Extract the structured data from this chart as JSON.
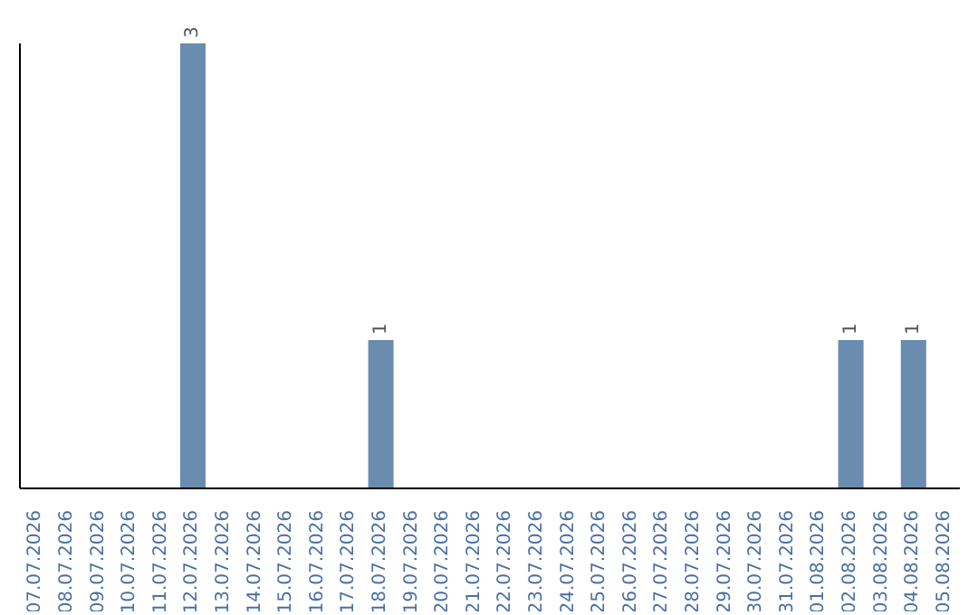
{
  "chart_data": {
    "type": "bar",
    "categories": [
      "07.07.2026",
      "08.07.2026",
      "09.07.2026",
      "10.07.2026",
      "11.07.2026",
      "12.07.2026",
      "13.07.2026",
      "14.07.2026",
      "15.07.2026",
      "16.07.2026",
      "17.07.2026",
      "18.07.2026",
      "19.07.2026",
      "20.07.2026",
      "21.07.2026",
      "22.07.2026",
      "23.07.2026",
      "24.07.2026",
      "25.07.2026",
      "26.07.2026",
      "27.07.2026",
      "28.07.2026",
      "29.07.2026",
      "30.07.2026",
      "31.07.2026",
      "01.08.2026",
      "02.08.2026",
      "03.08.2026",
      "04.08.2026",
      "05.08.2026"
    ],
    "values": [
      null,
      null,
      null,
      null,
      null,
      3,
      null,
      null,
      null,
      null,
      null,
      1,
      null,
      null,
      null,
      null,
      null,
      null,
      null,
      null,
      null,
      null,
      null,
      null,
      null,
      null,
      1,
      null,
      1,
      null
    ],
    "value_labels": [
      null,
      null,
      null,
      null,
      null,
      "3",
      null,
      null,
      null,
      null,
      null,
      "1",
      null,
      null,
      null,
      null,
      null,
      null,
      null,
      null,
      null,
      null,
      null,
      null,
      null,
      null,
      "1",
      null,
      "1",
      null
    ],
    "color": "#6a8caf",
    "grid": false,
    "legend": false
  }
}
